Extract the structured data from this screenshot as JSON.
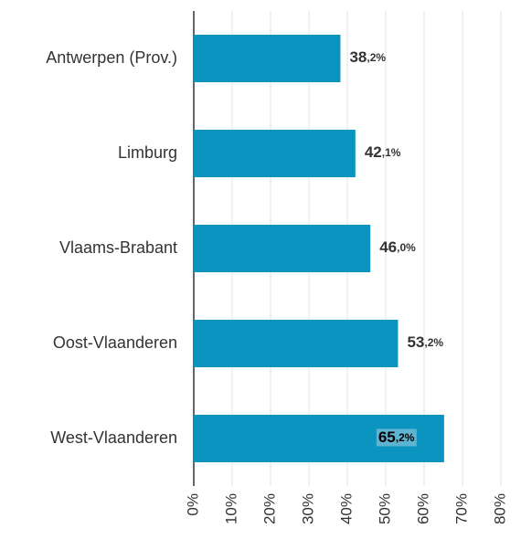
{
  "chart_data": {
    "type": "bar",
    "orientation": "horizontal",
    "categories": [
      "Antwerpen (Prov.)",
      "Limburg",
      "Vlaams-Brabant",
      "Oost-Vlaanderen",
      "West-Vlaanderen"
    ],
    "values": [
      38.2,
      42.1,
      46.0,
      53.2,
      65.2
    ],
    "value_labels": [
      "38,2%",
      "42,1%",
      "46,0%",
      "53,2%",
      "65,2%"
    ],
    "color": "#0a94bf",
    "xlim": [
      0,
      80
    ],
    "xticks": [
      {
        "value": 0,
        "label": "0%"
      },
      {
        "value": 10,
        "label": "10%"
      },
      {
        "value": 20,
        "label": "20%"
      },
      {
        "value": 30,
        "label": "30%"
      },
      {
        "value": 40,
        "label": "40%"
      },
      {
        "value": 50,
        "label": "50%"
      },
      {
        "value": 60,
        "label": "60%"
      },
      {
        "value": 70,
        "label": "70%"
      },
      {
        "value": 80,
        "label": "80%"
      }
    ],
    "grid": true
  }
}
